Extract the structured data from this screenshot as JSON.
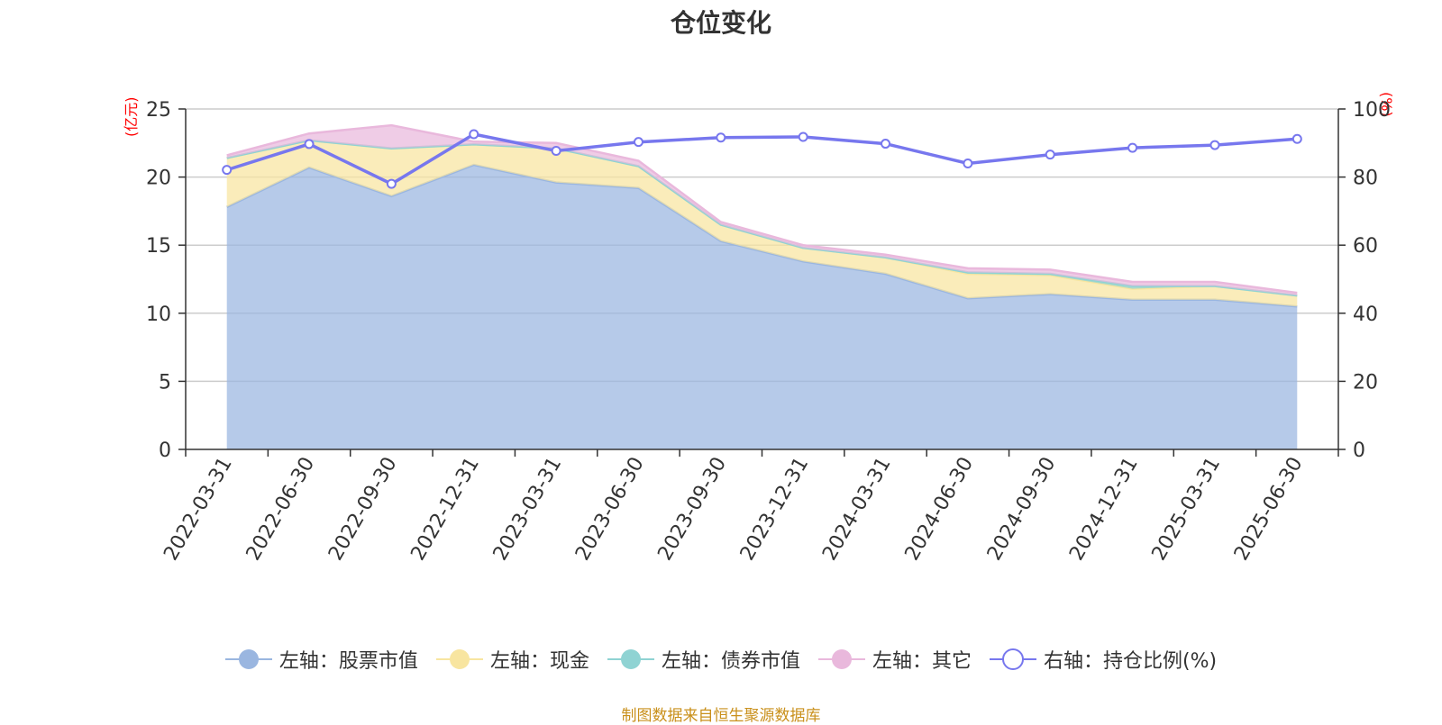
{
  "title": "仓位变化",
  "source_note": "制图数据来自恒生聚源数据库",
  "colors": {
    "stock": "#9ab6e0",
    "cash": "#f8e5a0",
    "bond": "#8fd3d3",
    "other": "#e9b8dc",
    "ratio": "#7777ee",
    "grid": "#cccccc",
    "axis": "#333333",
    "unit": "#ff0000"
  },
  "chart_data": {
    "type": "area",
    "x": [
      "2022-03-31",
      "2022-06-30",
      "2022-09-30",
      "2022-12-31",
      "2023-03-31",
      "2023-06-30",
      "2023-09-30",
      "2023-12-31",
      "2024-03-31",
      "2024-06-30",
      "2024-09-30",
      "2024-12-31",
      "2025-03-31",
      "2025-06-30"
    ],
    "y_left": {
      "unit": "(亿元)",
      "min": 0,
      "max": 25,
      "ticks": [
        0,
        5,
        10,
        15,
        20,
        25
      ]
    },
    "y_right": {
      "unit": "(%)",
      "min": 0,
      "max": 100,
      "ticks": [
        0,
        20,
        40,
        60,
        80,
        100
      ]
    },
    "series": [
      {
        "name": "左轴：股票市值",
        "axis": "left",
        "stack": true,
        "color_key": "stock",
        "values": [
          17.8,
          20.7,
          18.6,
          20.9,
          19.6,
          19.2,
          15.3,
          13.8,
          12.9,
          11.1,
          11.4,
          11.0,
          11.0,
          10.5
        ]
      },
      {
        "name": "左轴：现金",
        "axis": "left",
        "stack": true,
        "color_key": "cash",
        "values": [
          3.6,
          2.0,
          3.5,
          1.5,
          2.5,
          1.6,
          1.2,
          1.0,
          1.2,
          1.8,
          1.4,
          0.8,
          1.0,
          0.8
        ]
      },
      {
        "name": "左轴：债券市值",
        "axis": "left",
        "stack": true,
        "color_key": "bond",
        "values": [
          0,
          0,
          0,
          0,
          0,
          0,
          0,
          0,
          0,
          0.1,
          0.1,
          0.2,
          0,
          0
        ]
      },
      {
        "name": "左轴：其它",
        "axis": "left",
        "stack": true,
        "color_key": "other",
        "values": [
          0.2,
          0.5,
          1.7,
          0.2,
          0.4,
          0.4,
          0.2,
          0.2,
          0.2,
          0.3,
          0.3,
          0.3,
          0.3,
          0.2
        ]
      },
      {
        "name": "右轴：持仓比例(%)",
        "axis": "right",
        "color_key": "ratio",
        "values": [
          82.1,
          89.7,
          78.0,
          92.6,
          87.7,
          90.3,
          91.6,
          91.8,
          89.8,
          84.0,
          86.6,
          88.6,
          89.4,
          91.2
        ]
      }
    ]
  }
}
